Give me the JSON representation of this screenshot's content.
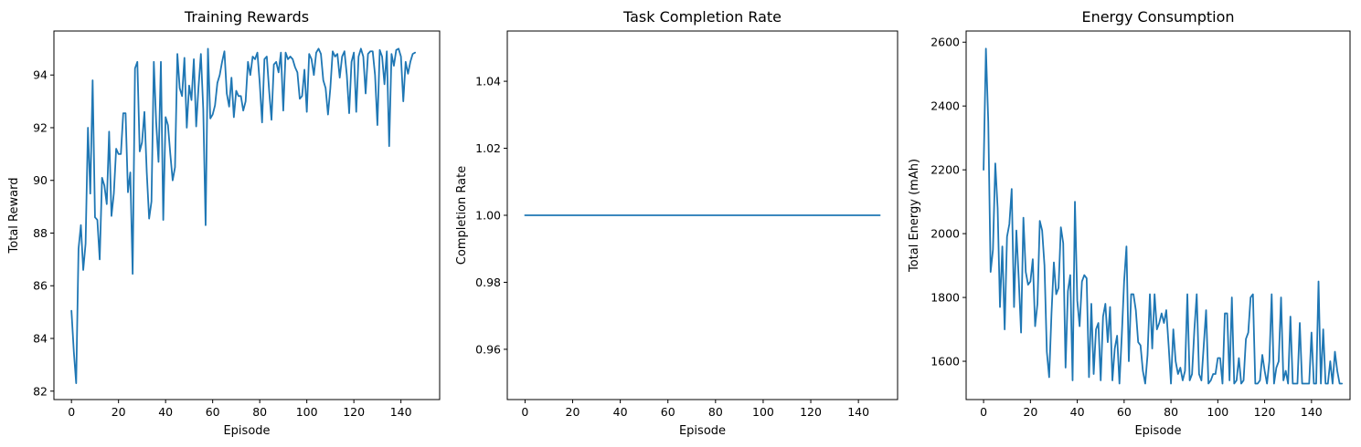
{
  "colors": {
    "series": "#1f77b4",
    "background": "#ffffff"
  },
  "chart_data": [
    {
      "type": "line",
      "title": "Training Rewards",
      "xlabel": "Episode",
      "ylabel": "Total Reward",
      "xlim": [
        -7.45,
        156.45
      ],
      "ylim": [
        81.68,
        95.67
      ],
      "xticks": [
        0,
        20,
        40,
        60,
        80,
        100,
        120,
        140
      ],
      "yticks": [
        82,
        84,
        86,
        88,
        90,
        92,
        94
      ],
      "grid": false,
      "series": [
        {
          "x_start": 0,
          "x_step": 1,
          "values": [
            85.05,
            83.5,
            82.3,
            87.4,
            88.3,
            86.6,
            87.6,
            92.0,
            89.5,
            93.8,
            88.6,
            88.5,
            87.0,
            90.1,
            89.8,
            89.1,
            91.85,
            88.65,
            89.5,
            91.2,
            91.0,
            91.0,
            92.55,
            92.55,
            89.55,
            90.3,
            86.45,
            94.25,
            94.5,
            91.1,
            91.45,
            92.6,
            90.3,
            88.55,
            89.2,
            94.5,
            92.2,
            90.7,
            94.5,
            88.5,
            92.4,
            92.1,
            91.0,
            90.0,
            90.5,
            94.8,
            93.5,
            93.2,
            94.65,
            92.0,
            93.6,
            93.05,
            94.6,
            92.05,
            93.55,
            94.8,
            92.7,
            88.3,
            95.0,
            92.35,
            92.5,
            92.85,
            93.7,
            94.0,
            94.5,
            94.9,
            93.3,
            92.8,
            93.9,
            92.4,
            93.4,
            93.2,
            93.2,
            92.65,
            93.0,
            94.5,
            94.0,
            94.7,
            94.6,
            94.85,
            93.7,
            92.2,
            94.6,
            94.7,
            93.4,
            92.3,
            94.4,
            94.5,
            94.1,
            94.85,
            92.65,
            94.85,
            94.6,
            94.7,
            94.6,
            94.3,
            94.1,
            93.1,
            93.2,
            94.2,
            92.6,
            94.8,
            94.6,
            94.0,
            94.85,
            95.0,
            94.8,
            93.8,
            93.5,
            92.5,
            93.5,
            94.9,
            94.7,
            94.8,
            93.9,
            94.7,
            94.9,
            94.0,
            92.55,
            94.5,
            94.85,
            92.6,
            94.7,
            95.0,
            94.7,
            93.3,
            94.8,
            94.9,
            94.9,
            94.0,
            92.1,
            94.95,
            94.7,
            93.65,
            94.9,
            91.3,
            94.8,
            94.35,
            94.95,
            95.0,
            94.7,
            93.0,
            94.5,
            94.05,
            94.5,
            94.8,
            94.85
          ]
        }
      ]
    },
    {
      "type": "line",
      "title": "Task Completion Rate",
      "xlabel": "Episode",
      "ylabel": "Completion Rate",
      "xlim": [
        -7.45,
        156.45
      ],
      "ylim": [
        0.945,
        1.055
      ],
      "xticks": [
        0,
        20,
        40,
        60,
        80,
        100,
        120,
        140
      ],
      "yticks": [
        0.96,
        0.98,
        1.0,
        1.02,
        1.04
      ],
      "ytick_labels": [
        "0.96",
        "0.98",
        "1.00",
        "1.02",
        "1.04"
      ],
      "grid": false,
      "series": [
        {
          "x": [
            0,
            149
          ],
          "values": [
            1.0,
            1.0
          ]
        }
      ]
    },
    {
      "type": "line",
      "title": "Energy Consumption",
      "xlabel": "Episode",
      "ylabel": "Total Energy (mAh)",
      "xlim": [
        -7.45,
        156.45
      ],
      "ylim": [
        1480,
        2635
      ],
      "xticks": [
        0,
        20,
        40,
        60,
        80,
        100,
        120,
        140
      ],
      "yticks": [
        1600,
        1800,
        2000,
        2200,
        2400,
        2600
      ],
      "grid": false,
      "series": [
        {
          "x_start": 0,
          "x_step": 1,
          "values": [
            2200,
            2580,
            2350,
            1880,
            1950,
            2220,
            2080,
            1770,
            1960,
            1700,
            1990,
            2030,
            2140,
            1770,
            2010,
            1860,
            1690,
            2050,
            1880,
            1840,
            1850,
            1920,
            1710,
            1780,
            2040,
            2010,
            1900,
            1630,
            1550,
            1750,
            1910,
            1810,
            1830,
            2020,
            1970,
            1580,
            1820,
            1870,
            1540,
            2100,
            1790,
            1710,
            1850,
            1870,
            1860,
            1550,
            1780,
            1560,
            1700,
            1720,
            1540,
            1740,
            1780,
            1660,
            1770,
            1540,
            1640,
            1680,
            1530,
            1680,
            1850,
            1960,
            1600,
            1810,
            1810,
            1760,
            1660,
            1650,
            1570,
            1530,
            1620,
            1810,
            1640,
            1810,
            1700,
            1720,
            1750,
            1720,
            1760,
            1650,
            1530,
            1700,
            1600,
            1560,
            1580,
            1540,
            1570,
            1810,
            1540,
            1560,
            1700,
            1810,
            1560,
            1540,
            1650,
            1760,
            1530,
            1540,
            1560,
            1560,
            1610,
            1610,
            1530,
            1750,
            1750,
            1540,
            1800,
            1530,
            1540,
            1610,
            1530,
            1540,
            1670,
            1690,
            1800,
            1810,
            1530,
            1530,
            1540,
            1620,
            1570,
            1530,
            1600,
            1810,
            1530,
            1580,
            1600,
            1800,
            1540,
            1570,
            1530,
            1740,
            1530,
            1530,
            1530,
            1720,
            1530,
            1530,
            1530,
            1530,
            1690,
            1530,
            1530,
            1850,
            1530,
            1700,
            1530,
            1530,
            1600,
            1530,
            1630,
            1570,
            1530,
            1530
          ]
        }
      ]
    }
  ]
}
